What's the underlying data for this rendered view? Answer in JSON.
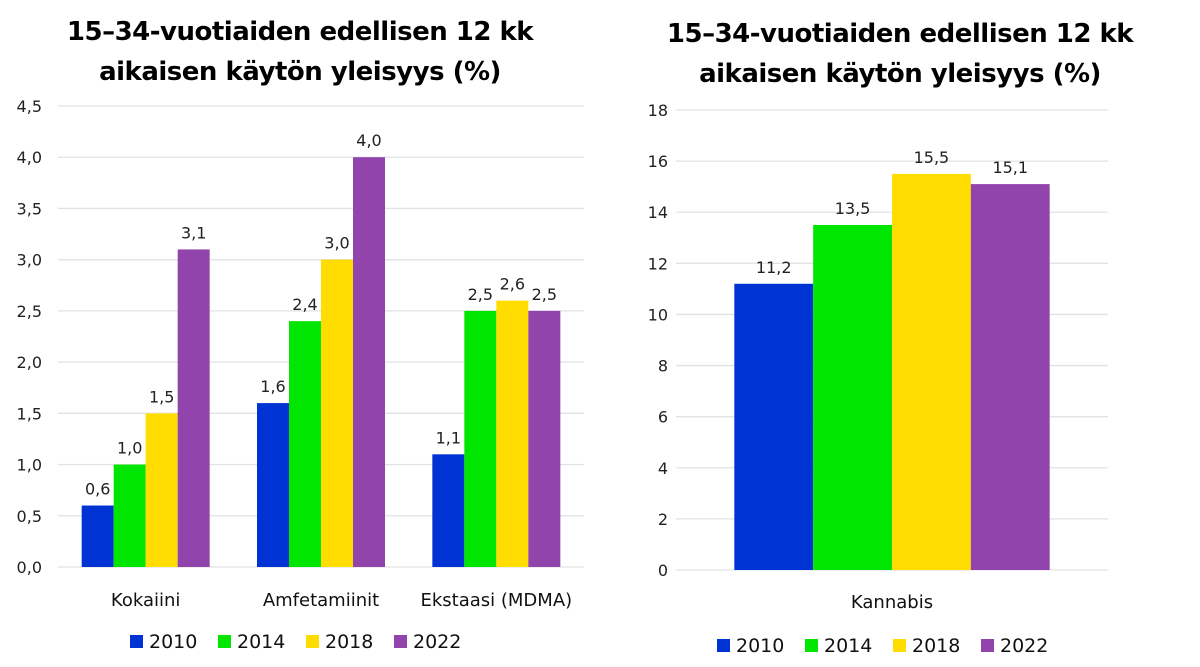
{
  "chart_data": [
    {
      "type": "bar",
      "title": "15–34-vuotiaiden edellisen 12 kk aikaisen käytön yleisyys (%)",
      "title_lines": [
        "15–34-vuotiaiden edellisen 12 kk",
        "aikaisen käytön yleisyys (%)"
      ],
      "xlabel": "",
      "ylabel": "",
      "categories": [
        "Kokaiini",
        "Amfetamiinit",
        "Ekstaasi (MDMA)"
      ],
      "series": [
        {
          "name": "2010",
          "color": "#0033D4",
          "values": [
            0.6,
            1.6,
            1.1
          ],
          "labels": [
            "0,6",
            "1,6",
            "1,1"
          ]
        },
        {
          "name": "2014",
          "color": "#00E600",
          "values": [
            1.0,
            2.4,
            2.5
          ],
          "labels": [
            "1,0",
            "2,4",
            "2,5"
          ]
        },
        {
          "name": "2018",
          "color": "#FFDD00",
          "values": [
            1.5,
            3.0,
            2.6
          ],
          "labels": [
            "1,5",
            "3,0",
            "2,6"
          ]
        },
        {
          "name": "2022",
          "color": "#9044AC",
          "values": [
            3.1,
            4.0,
            2.5
          ],
          "labels": [
            "3,1",
            "4,0",
            "2,5"
          ]
        }
      ],
      "ylim": [
        0,
        4.5
      ],
      "yticks": [
        0,
        0.5,
        1.0,
        1.5,
        2.0,
        2.5,
        3.0,
        3.5,
        4.0,
        4.5
      ],
      "ytick_labels": [
        "0,0",
        "0,5",
        "1,0",
        "1,5",
        "2,0",
        "2,5",
        "3,0",
        "3,5",
        "4,0",
        "4,5"
      ],
      "grid": true,
      "legend_position": "bottom",
      "gridline_color": "#E2E2E2"
    },
    {
      "type": "bar",
      "title": "15–34-vuotiaiden edellisen 12 kk aikaisen käytön yleisyys (%)",
      "title_lines": [
        "15–34-vuotiaiden edellisen 12 kk",
        "aikaisen käytön yleisyys (%)"
      ],
      "xlabel": "",
      "ylabel": "",
      "categories": [
        "Kannabis"
      ],
      "series": [
        {
          "name": "2010",
          "color": "#0033D4",
          "values": [
            11.2
          ],
          "labels": [
            "11,2"
          ]
        },
        {
          "name": "2014",
          "color": "#00E600",
          "values": [
            13.5
          ],
          "labels": [
            "13,5"
          ]
        },
        {
          "name": "2018",
          "color": "#FFDD00",
          "values": [
            15.5
          ],
          "labels": [
            "15,5"
          ]
        },
        {
          "name": "2022",
          "color": "#9044AC",
          "values": [
            15.1
          ],
          "labels": [
            "15,1"
          ]
        }
      ],
      "ylim": [
        0,
        18
      ],
      "yticks": [
        0,
        2,
        4,
        6,
        8,
        10,
        12,
        14,
        16,
        18
      ],
      "ytick_labels": [
        "0",
        "2",
        "4",
        "6",
        "8",
        "10",
        "12",
        "14",
        "16",
        "18"
      ],
      "grid": true,
      "legend_position": "bottom",
      "gridline_color": "#E2E2E2"
    }
  ]
}
